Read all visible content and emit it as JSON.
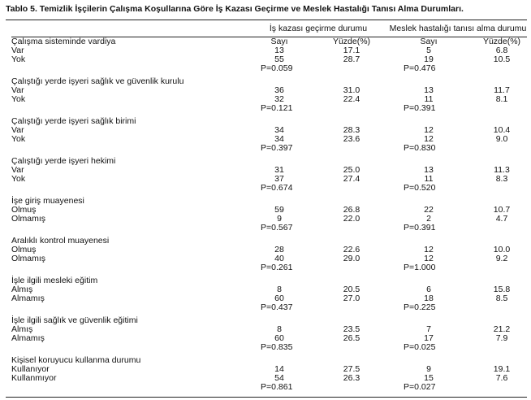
{
  "title": "Tablo 5. Temizlik İşçilerin Çalışma Koşullarına Göre İş Kazası Geçirme ve Meslek Hastalığı Tanısı Alma Durumları.",
  "headers": {
    "group1": "İş kazası geçirme durumu",
    "group2": "Meslek hastalığı tanısı alma durumu",
    "sub1_count": "Sayı",
    "sub1_pct": "Yüzde(%)",
    "sub2_count": "Sayı",
    "sub2_pct": "Yüzde(%)"
  },
  "sections": [
    {
      "label": "Çalışma sisteminde vardiya",
      "rows": [
        {
          "label": "Var",
          "n1": "13",
          "p1": "17.1",
          "n2": "5",
          "p2": "6.8"
        },
        {
          "label": "Yok",
          "n1": "55",
          "p1": "28.7",
          "n2": "19",
          "p2": "10.5"
        }
      ],
      "pval1": "P=0.059",
      "pval2": "P=0.476"
    },
    {
      "label": "Çalıştığı yerde işyeri sağlık ve güvenlik kurulu",
      "rows": [
        {
          "label": "Var",
          "n1": "36",
          "p1": "31.0",
          "n2": "13",
          "p2": "11.7"
        },
        {
          "label": "Yok",
          "n1": "32",
          "p1": "22.4",
          "n2": "11",
          "p2": "8.1"
        }
      ],
      "pval1": "P=0.121",
      "pval2": "P=0.391"
    },
    {
      "label": "Çalıştığı yerde işyeri sağlık birimi",
      "rows": [
        {
          "label": "Var",
          "n1": "34",
          "p1": "28.3",
          "n2": "12",
          "p2": "10.4"
        },
        {
          "label": "Yok",
          "n1": "34",
          "p1": "23.6",
          "n2": "12",
          "p2": "9.0"
        }
      ],
      "pval1": "P=0.397",
      "pval2": "P=0.830"
    },
    {
      "label": "Çalıştığı yerde işyeri hekimi",
      "rows": [
        {
          "label": "Var",
          "n1": "31",
          "p1": "25.0",
          "n2": "13",
          "p2": "11.3"
        },
        {
          "label": "Yok",
          "n1": "37",
          "p1": "27.4",
          "n2": "11",
          "p2": "8.3"
        }
      ],
      "pval1": "P=0.674",
      "pval2": "P=0.520"
    },
    {
      "label": "İşe giriş muayenesi",
      "rows": [
        {
          "label": "Olmuş",
          "n1": "59",
          "p1": "26.8",
          "n2": "22",
          "p2": "10.7"
        },
        {
          "label": "Olmamış",
          "n1": "9",
          "p1": "22.0",
          "n2": "2",
          "p2": "4.7"
        }
      ],
      "pval1": "P=0.567",
      "pval2": "P=0.391"
    },
    {
      "label": "Aralıklı kontrol muayenesi",
      "rows": [
        {
          "label": "Olmuş",
          "n1": "28",
          "p1": "22.6",
          "n2": "12",
          "p2": "10.0"
        },
        {
          "label": "Olmamış",
          "n1": "40",
          "p1": "29.0",
          "n2": "12",
          "p2": "9.2"
        }
      ],
      "pval1": "P=0.261",
      "pval2": "P=1.000"
    },
    {
      "label": "İşle ilgili mesleki eğitim",
      "rows": [
        {
          "label": "Almış",
          "n1": "8",
          "p1": "20.5",
          "n2": "6",
          "p2": "15.8"
        },
        {
          "label": "Almamış",
          "n1": "60",
          "p1": "27.0",
          "n2": "18",
          "p2": "8.5"
        }
      ],
      "pval1": "P=0.437",
      "pval2": "P=0.225"
    },
    {
      "label": "İşle ilgili sağlık ve güvenlik eğitimi",
      "rows": [
        {
          "label": "Almış",
          "n1": "8",
          "p1": "23.5",
          "n2": "7",
          "p2": "21.2"
        },
        {
          "label": "Almamış",
          "n1": "60",
          "p1": "26.5",
          "n2": "17",
          "p2": "7.9"
        }
      ],
      "pval1": "P=0.835",
      "pval2": "P=0.025"
    },
    {
      "label": "Kişisel koruyucu kullanma durumu",
      "rows": [
        {
          "label": "Kullanıyor",
          "n1": "14",
          "p1": "27.5",
          "n2": "9",
          "p2": "19.1"
        },
        {
          "label": "Kullanmıyor",
          "n1": "54",
          "p1": "26.3",
          "n2": "15",
          "p2": "7.6"
        }
      ],
      "pval1": "P=0.861",
      "pval2": "P=0.027"
    }
  ]
}
